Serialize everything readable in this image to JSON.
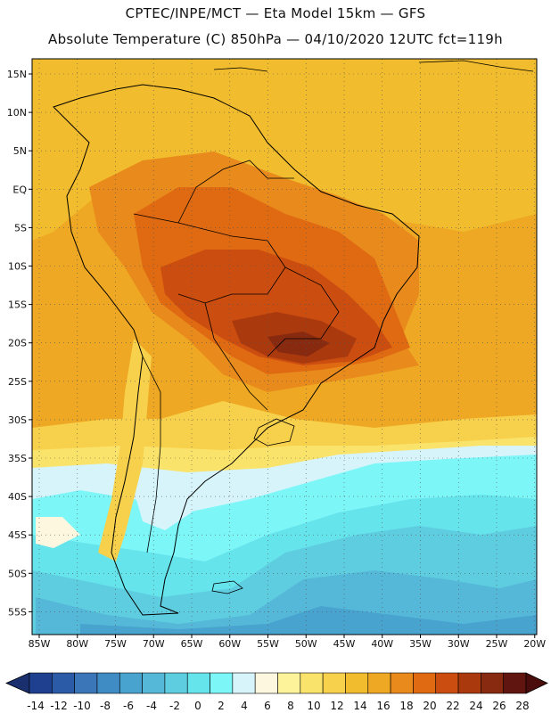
{
  "header": {
    "line1": "CPTEC/INPE/MCT —  Eta Model 15km — GFS",
    "line2": "Absolute Temperature (C) 850hPa — 04/10/2020 12UTC fct=119h"
  },
  "axes": {
    "lat_labels": [
      "15N",
      "10N",
      "5N",
      "EQ",
      "5S",
      "10S",
      "15S",
      "20S",
      "25S",
      "30S",
      "35S",
      "40S",
      "45S",
      "50S",
      "55S"
    ],
    "lon_labels": [
      "85W",
      "80W",
      "75W",
      "70W",
      "65W",
      "60W",
      "55W",
      "50W",
      "45W",
      "40W",
      "35W",
      "30W",
      "25W",
      "20W"
    ]
  },
  "colorbar": {
    "ticks": [
      "-14",
      "-12",
      "-10",
      "-8",
      "-6",
      "-4",
      "-2",
      "0",
      "2",
      "4",
      "6",
      "8",
      "10",
      "12",
      "14",
      "16",
      "18",
      "20",
      "22",
      "24",
      "26",
      "28"
    ],
    "colors": [
      "#1f3f8f",
      "#2b5aa6",
      "#3b76b8",
      "#3f8cc4",
      "#49a3cf",
      "#55b8d8",
      "#5fcde0",
      "#66e4ec",
      "#7df6f8",
      "#d7f4fb",
      "#fdf7e0",
      "#fcf39a",
      "#fae36b",
      "#f7d14c",
      "#f1bc2d",
      "#eea823",
      "#e88a1c",
      "#e06a12",
      "#cc4d10",
      "#aa3a0e",
      "#872a10",
      "#611510"
    ],
    "under_color": "#1a2f6e",
    "over_color": "#4b0c0c"
  }
}
